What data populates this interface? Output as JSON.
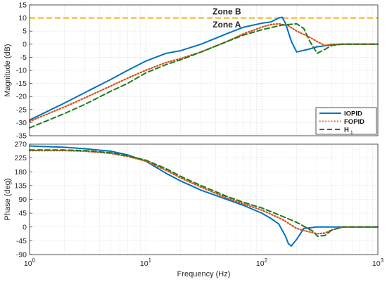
{
  "chart_data": [
    {
      "type": "line",
      "panel": "magnitude",
      "xscale": "log",
      "xlim": [
        1,
        1000
      ],
      "ylim": [
        -35,
        15
      ],
      "yticks": [
        -35,
        -30,
        -25,
        -20,
        -15,
        -10,
        -5,
        0,
        5,
        10,
        15
      ],
      "ylabel": "Magnitude (dB)",
      "grid": true,
      "annotations": [
        {
          "text": "Zone B",
          "x": 50,
          "y": 12.5
        },
        {
          "text": "Zone A",
          "x": 50,
          "y": 7.5
        }
      ],
      "reference_line": {
        "y": 10,
        "color": "#EDB120",
        "style": "dashed"
      },
      "legend": {
        "placement": "bottom-right",
        "entries": [
          {
            "label": "IOPID",
            "color": "#0072BD",
            "style": "solid"
          },
          {
            "label": "FOPID",
            "color": "#D95319",
            "style": "dotted"
          },
          {
            "label": "H",
            "subscript": "1",
            "color": "#1E7A1E",
            "style": "dashed"
          }
        ]
      },
      "series": [
        {
          "name": "IOPID",
          "color": "#0072BD",
          "style": "solid",
          "x": [
            1,
            2,
            3,
            5,
            7,
            10,
            15,
            20,
            30,
            50,
            70,
            100,
            120,
            140,
            150,
            160,
            180,
            200,
            250,
            300,
            400,
            500,
            700,
            1000
          ],
          "y": [
            -29,
            -22.5,
            -18.5,
            -13.5,
            -10,
            -6.5,
            -3.5,
            -2.5,
            0,
            4,
            6.5,
            8,
            8.5,
            10,
            10.3,
            8,
            1,
            -3,
            -2,
            -1,
            -0.3,
            0,
            0,
            0
          ]
        },
        {
          "name": "FOPID",
          "color": "#D95319",
          "style": "dotted",
          "x": [
            1,
            2,
            3,
            5,
            7,
            10,
            15,
            20,
            30,
            50,
            70,
            100,
            120,
            140,
            170,
            200,
            250,
            300,
            350,
            400,
            500,
            700,
            1000
          ],
          "y": [
            -29.5,
            -24,
            -20.5,
            -16,
            -13,
            -10,
            -7,
            -5.5,
            -3,
            1,
            4,
            6.5,
            7.5,
            7.8,
            7,
            5,
            3,
            1,
            -0.5,
            0,
            0,
            0,
            0
          ]
        },
        {
          "name": "H",
          "color": "#1E7A1E",
          "style": "dashed",
          "x": [
            1,
            2,
            3,
            5,
            7,
            10,
            15,
            20,
            30,
            50,
            70,
            100,
            150,
            200,
            230,
            260,
            300,
            350,
            400,
            500,
            700,
            1000
          ],
          "y": [
            -32,
            -26.5,
            -23,
            -18,
            -15,
            -11,
            -7.8,
            -6,
            -3,
            1,
            3.5,
            5.5,
            7.3,
            7.8,
            6,
            1,
            -3.5,
            -2,
            -0.5,
            0,
            0,
            0
          ]
        }
      ]
    },
    {
      "type": "line",
      "panel": "phase",
      "xscale": "log",
      "xlim": [
        1,
        1000
      ],
      "ylim": [
        -90,
        270
      ],
      "yticks": [
        -90,
        -45,
        0,
        45,
        90,
        135,
        180,
        225,
        270
      ],
      "xticks": [
        "10^0",
        "10^1",
        "10^2",
        "10^3"
      ],
      "xlabel": "Frequency  (Hz)",
      "ylabel": "Phase (deg)",
      "grid": true,
      "series": [
        {
          "name": "IOPID",
          "color": "#0072BD",
          "style": "solid",
          "x": [
            1,
            2,
            3,
            5,
            7,
            10,
            15,
            20,
            30,
            50,
            70,
            100,
            120,
            140,
            160,
            170,
            180,
            200,
            230,
            300,
            500,
            1000
          ],
          "y": [
            264,
            260,
            255,
            247,
            235,
            215,
            175,
            150,
            120,
            90,
            70,
            45,
            28,
            10,
            -30,
            -55,
            -62,
            -40,
            -5,
            0,
            0,
            0
          ]
        },
        {
          "name": "FOPID",
          "color": "#D95319",
          "style": "dotted",
          "x": [
            1,
            2,
            3,
            5,
            7,
            10,
            15,
            20,
            30,
            50,
            70,
            100,
            150,
            200,
            250,
            300,
            350,
            400,
            500,
            700,
            1000
          ],
          "y": [
            249,
            249,
            247,
            240,
            230,
            215,
            185,
            160,
            130,
            95,
            75,
            55,
            25,
            -5,
            -15,
            -22,
            -20,
            -10,
            0,
            0,
            0
          ]
        },
        {
          "name": "H",
          "color": "#1E7A1E",
          "style": "dashed",
          "x": [
            1,
            2,
            3,
            5,
            7,
            10,
            15,
            20,
            30,
            50,
            70,
            100,
            150,
            200,
            250,
            280,
            300,
            350,
            400,
            500,
            700,
            1000
          ],
          "y": [
            251,
            251,
            249,
            242,
            232,
            218,
            190,
            165,
            135,
            100,
            80,
            62,
            35,
            15,
            -5,
            -15,
            -30,
            -28,
            -10,
            0,
            0,
            0
          ]
        }
      ]
    }
  ]
}
